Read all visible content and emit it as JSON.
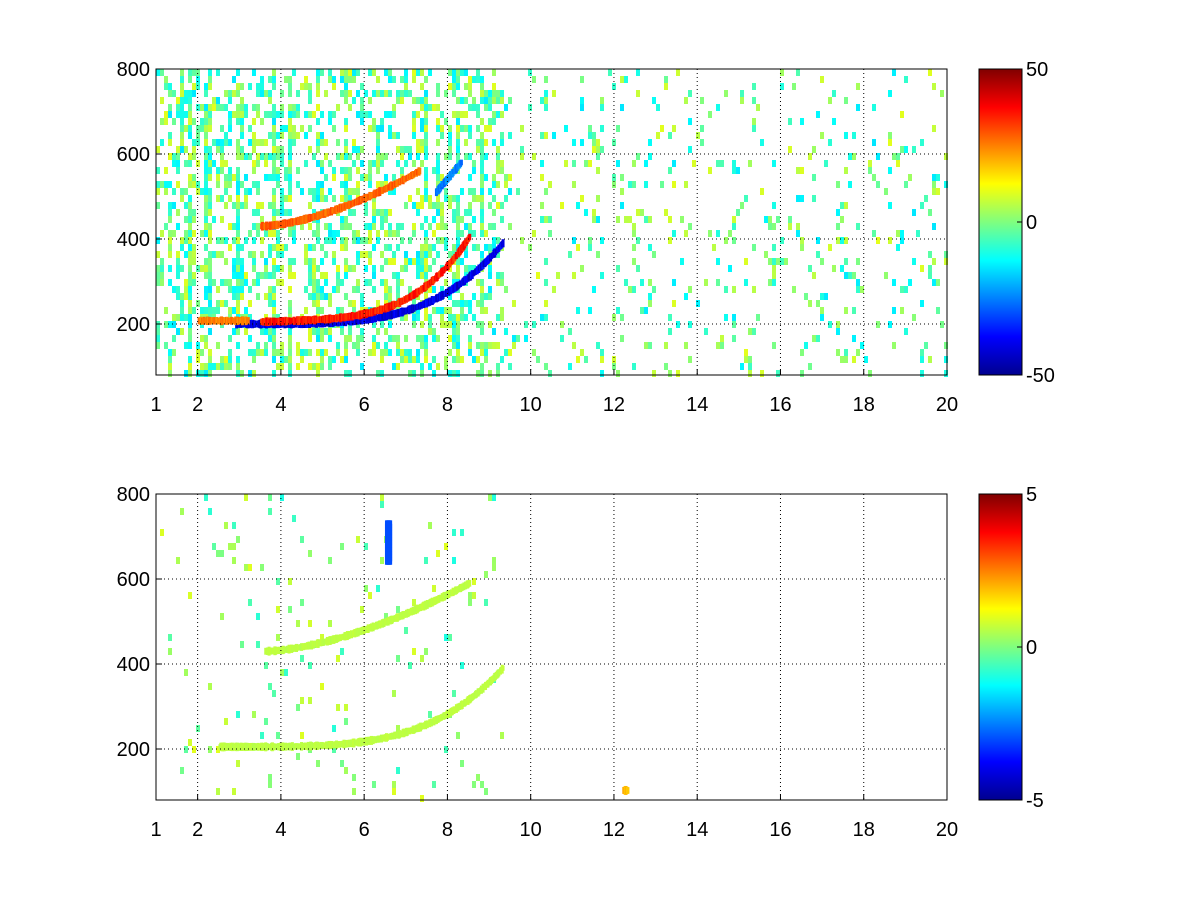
{
  "chart_data": [
    {
      "type": "heatmap",
      "colormap": "jet",
      "title": "",
      "xlabel": "",
      "ylabel": "",
      "xlim": [
        1,
        20
      ],
      "ylim": [
        80,
        800
      ],
      "xticks": [
        "1",
        "2",
        "4",
        "6",
        "8",
        "10",
        "12",
        "14",
        "16",
        "18",
        "20"
      ],
      "xtick_values": [
        1,
        2,
        4,
        6,
        8,
        10,
        12,
        14,
        16,
        18,
        20
      ],
      "yticks": [
        "200",
        "400",
        "600",
        "800"
      ],
      "ytick_values": [
        200,
        400,
        600,
        800
      ],
      "grid": true,
      "colorbar": {
        "min": -50,
        "max": 50,
        "tick_labels": [
          "50",
          "0",
          "-50"
        ],
        "tick_values": [
          50,
          0,
          -50
        ]
      },
      "features": [
        {
          "x_range": [
            2.9,
            9.3
          ],
          "y_range": [
            200,
            390
          ],
          "curve": "lower",
          "value": -40
        },
        {
          "x_range": [
            3.5,
            8.5
          ],
          "y_range": [
            205,
            390
          ],
          "curve": "lower-offset",
          "value": 35
        },
        {
          "x_range": [
            3.5,
            7.3
          ],
          "y_range": [
            430,
            560
          ],
          "curve": "upper",
          "value": 28
        },
        {
          "x_range": [
            7.7,
            8.3
          ],
          "y_range": [
            510,
            580
          ],
          "curve": "upper-tail",
          "value": -25
        },
        {
          "x_range": [
            2.0,
            3.2
          ],
          "y_range": [
            205,
            210
          ],
          "curve": "flat",
          "value": 25
        }
      ],
      "noise": {
        "x_dense": [
          1,
          9.5
        ],
        "x_sparse": [
          9.5,
          20
        ],
        "value_range": [
          -15,
          10
        ]
      }
    },
    {
      "type": "heatmap",
      "colormap": "jet",
      "title": "",
      "xlabel": "",
      "ylabel": "",
      "xlim": [
        1,
        20
      ],
      "ylim": [
        80,
        800
      ],
      "xticks": [
        "1",
        "2",
        "4",
        "6",
        "8",
        "10",
        "12",
        "14",
        "16",
        "18",
        "20"
      ],
      "xtick_values": [
        1,
        2,
        4,
        6,
        8,
        10,
        12,
        14,
        16,
        18,
        20
      ],
      "yticks": [
        "200",
        "400",
        "600",
        "800"
      ],
      "ytick_values": [
        200,
        400,
        600,
        800
      ],
      "grid": true,
      "colorbar": {
        "min": -5,
        "max": 5,
        "tick_labels": [
          "5",
          "0",
          "-5"
        ],
        "tick_values": [
          5,
          0,
          -5
        ]
      },
      "features": [
        {
          "x_range": [
            2.5,
            9.3
          ],
          "y_range": [
            205,
            390
          ],
          "curve": "lower",
          "value": 0.6
        },
        {
          "x_range": [
            3.6,
            8.5
          ],
          "y_range": [
            430,
            590
          ],
          "curve": "upper",
          "value": 0.6
        },
        {
          "x_range": [
            6.5,
            6.6
          ],
          "y_range": [
            650,
            740
          ],
          "curve": "vertical",
          "value": -3
        },
        {
          "x_range": [
            12.2,
            12.3
          ],
          "y_range": [
            95,
            110
          ],
          "curve": "flat",
          "value": 2
        }
      ],
      "noise": {
        "x_dense": [
          1,
          9.3
        ],
        "x_sparse": [
          9.3,
          9.3
        ],
        "value_range": [
          -1,
          1
        ]
      }
    }
  ]
}
